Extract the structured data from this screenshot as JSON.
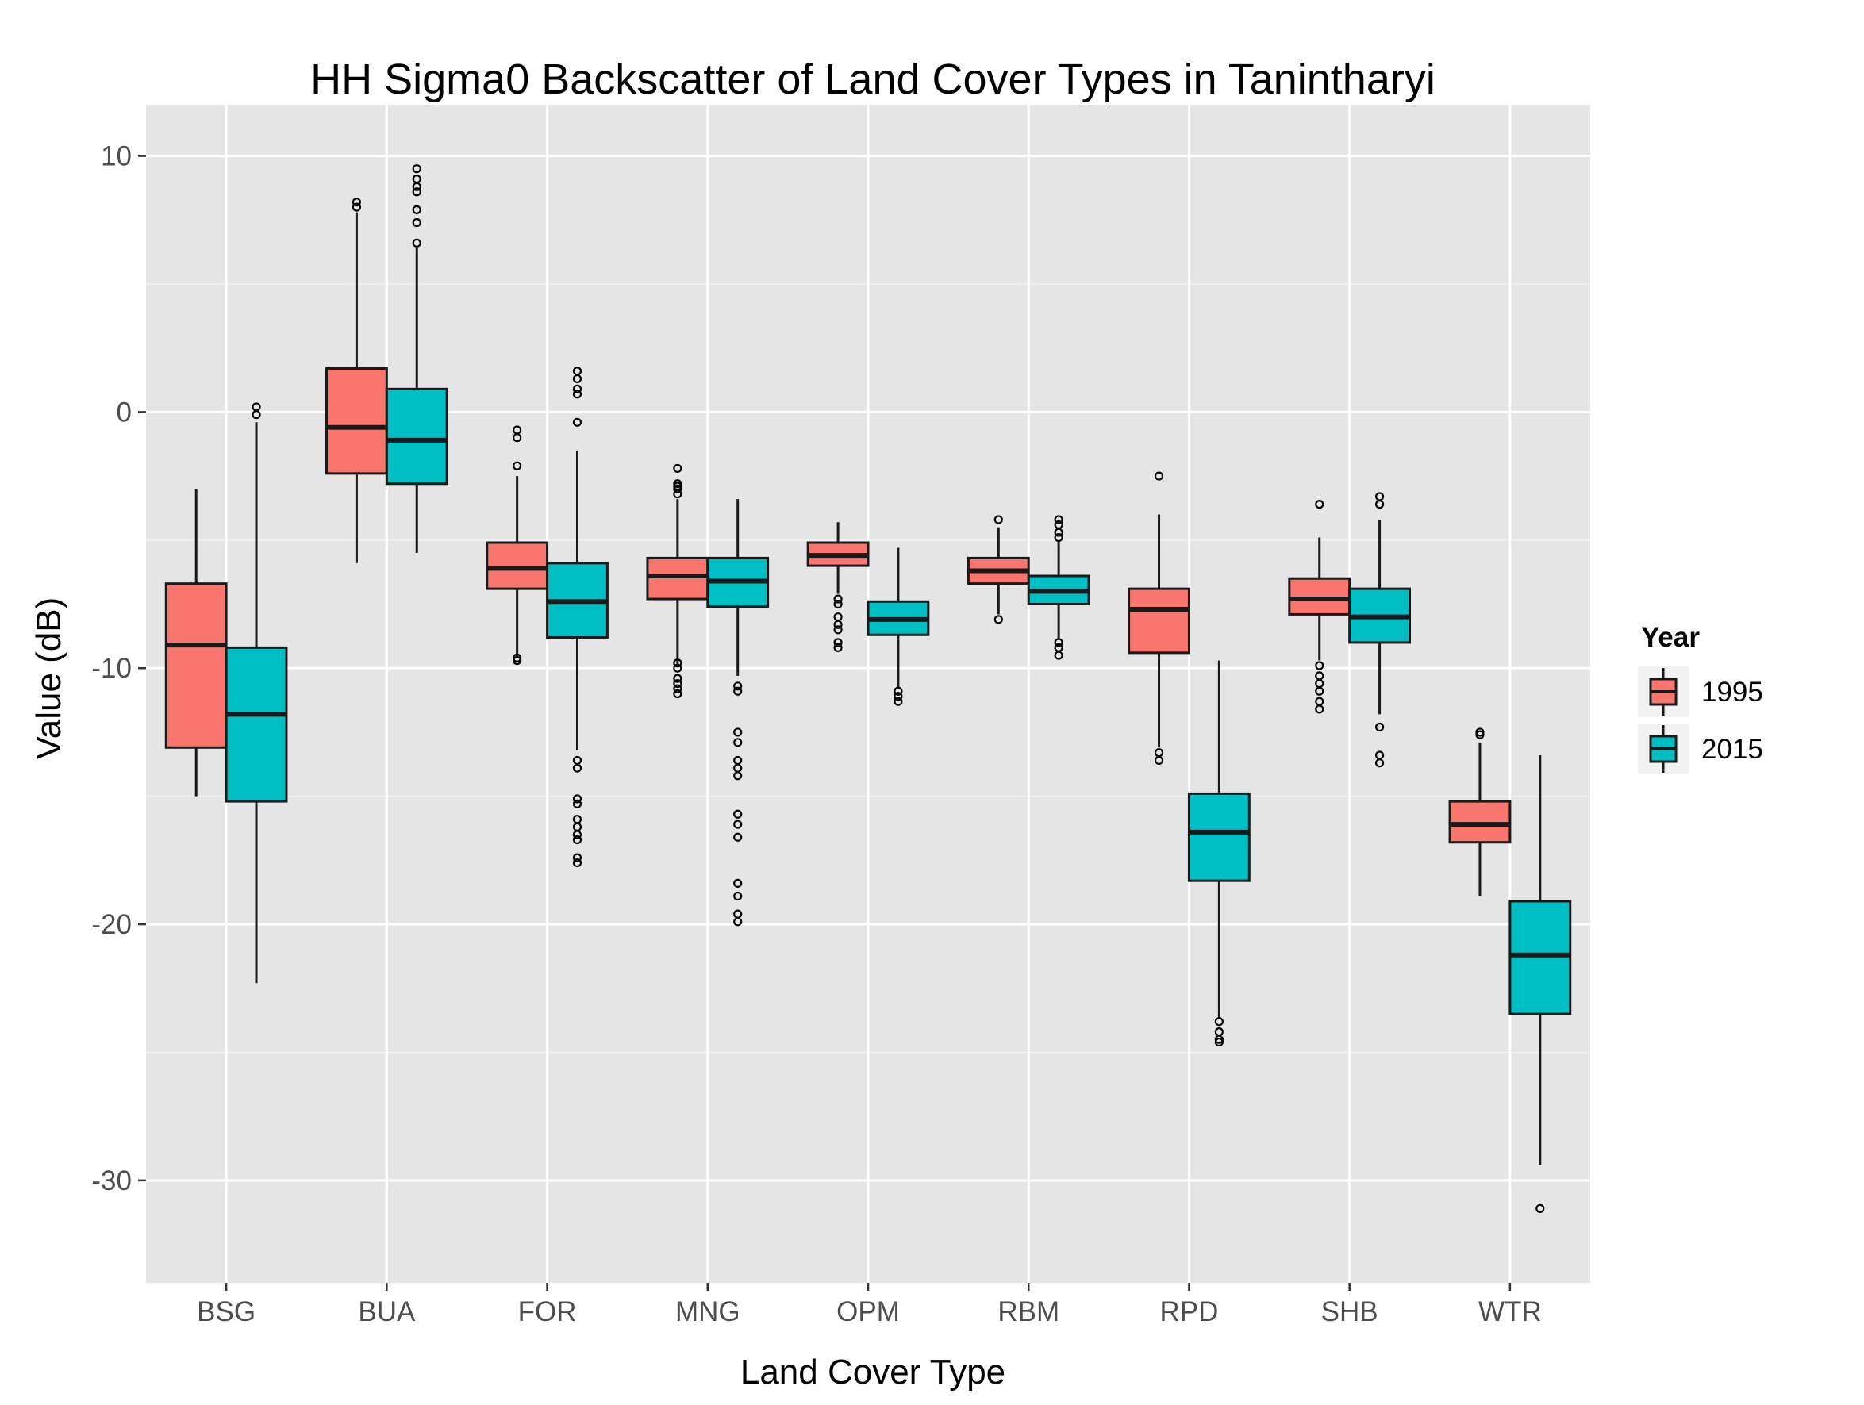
{
  "chart_data": {
    "type": "boxplot",
    "title": "HH Sigma0 Backscatter of Land Cover Types in Tanintharyi",
    "xlabel": "Land Cover Type",
    "ylabel": "Value (dB)",
    "ylim": [
      -34,
      12
    ],
    "yticks": [
      -30,
      -20,
      -10,
      0,
      10
    ],
    "yticks_labels": [
      "-30",
      "-20",
      "-10",
      "0",
      "10"
    ],
    "grid": true,
    "legend": {
      "title": "Year",
      "position": "right"
    },
    "categories": [
      "BSG",
      "BUA",
      "FOR",
      "MNG",
      "OPM",
      "RBM",
      "RPD",
      "SHB",
      "WTR"
    ],
    "series": [
      {
        "name": "1995",
        "color": "#F8766D",
        "boxes": [
          {
            "whisker_low": -15.0,
            "q1": -13.1,
            "median": -9.1,
            "q3": -6.7,
            "whisker_high": -3.0,
            "outliers": []
          },
          {
            "whisker_low": -5.9,
            "q1": -2.4,
            "median": -0.6,
            "q3": 1.7,
            "whisker_high": 7.8,
            "outliers": [
              8.0,
              8.2
            ]
          },
          {
            "whisker_low": -9.6,
            "q1": -6.9,
            "median": -6.1,
            "q3": -5.1,
            "whisker_high": -2.5,
            "outliers": [
              -0.7,
              -1.0,
              -2.1,
              -9.6,
              -9.7
            ]
          },
          {
            "whisker_low": -9.9,
            "q1": -7.3,
            "median": -6.4,
            "q3": -5.7,
            "whisker_high": -3.4,
            "outliers": [
              -2.2,
              -2.8,
              -2.9,
              -3.0,
              -3.2,
              -9.8,
              -10.0,
              -10.4,
              -10.6,
              -10.8,
              -11.0
            ]
          },
          {
            "whisker_low": -7.1,
            "q1": -6.0,
            "median": -5.6,
            "q3": -5.1,
            "whisker_high": -4.3,
            "outliers": [
              -7.3,
              -7.5,
              -8.0,
              -8.3,
              -8.5,
              -9.0,
              -9.2
            ]
          },
          {
            "whisker_low": -7.9,
            "q1": -6.7,
            "median": -6.2,
            "q3": -5.7,
            "whisker_high": -4.5,
            "outliers": [
              -4.2,
              -8.1
            ]
          },
          {
            "whisker_low": -13.1,
            "q1": -9.4,
            "median": -7.7,
            "q3": -6.9,
            "whisker_high": -4.0,
            "outliers": [
              -2.5,
              -13.3,
              -13.6
            ]
          },
          {
            "whisker_low": -9.7,
            "q1": -7.9,
            "median": -7.3,
            "q3": -6.5,
            "whisker_high": -4.9,
            "outliers": [
              -3.6,
              -9.9,
              -10.3,
              -10.6,
              -10.9,
              -11.3,
              -11.6
            ]
          },
          {
            "whisker_low": -18.9,
            "q1": -16.8,
            "median": -16.1,
            "q3": -15.2,
            "whisker_high": -12.9,
            "outliers": [
              -12.5,
              -12.6
            ]
          }
        ]
      },
      {
        "name": "2015",
        "color": "#00BFC4",
        "boxes": [
          {
            "whisker_low": -22.3,
            "q1": -15.2,
            "median": -11.8,
            "q3": -9.2,
            "whisker_high": -0.4,
            "outliers": [
              0.2,
              -0.1
            ]
          },
          {
            "whisker_low": -5.5,
            "q1": -2.8,
            "median": -1.1,
            "q3": 0.9,
            "whisker_high": 6.4,
            "outliers": [
              6.6,
              7.4,
              7.9,
              8.6,
              8.8,
              9.1,
              9.5
            ]
          },
          {
            "whisker_low": -13.2,
            "q1": -8.8,
            "median": -7.4,
            "q3": -5.9,
            "whisker_high": -1.5,
            "outliers": [
              -0.4,
              0.7,
              0.9,
              1.3,
              1.6,
              -13.6,
              -13.9,
              -15.1,
              -15.3,
              -15.9,
              -16.2,
              -16.5,
              -16.7,
              -17.4,
              -17.6
            ]
          },
          {
            "whisker_low": -10.3,
            "q1": -7.6,
            "median": -6.6,
            "q3": -5.7,
            "whisker_high": -3.4,
            "outliers": [
              -10.7,
              -10.9,
              -12.5,
              -12.9,
              -13.6,
              -13.9,
              -14.2,
              -15.7,
              -16.1,
              -16.6,
              -18.4,
              -18.9,
              -19.6,
              -19.9
            ]
          },
          {
            "whisker_low": -10.8,
            "q1": -8.7,
            "median": -8.1,
            "q3": -7.4,
            "whisker_high": -5.3,
            "outliers": [
              -10.9,
              -11.1,
              -11.3
            ]
          },
          {
            "whisker_low": -8.9,
            "q1": -7.5,
            "median": -7.0,
            "q3": -6.4,
            "whisker_high": -5.0,
            "outliers": [
              -4.2,
              -4.4,
              -4.7,
              -4.9,
              -9.0,
              -9.2,
              -9.5
            ]
          },
          {
            "whisker_low": -23.7,
            "q1": -18.3,
            "median": -16.4,
            "q3": -14.9,
            "whisker_high": -9.7,
            "outliers": [
              -23.8,
              -24.2,
              -24.5,
              -24.6
            ]
          },
          {
            "whisker_low": -11.8,
            "q1": -9.0,
            "median": -8.0,
            "q3": -6.9,
            "whisker_high": -4.2,
            "outliers": [
              -3.3,
              -3.6,
              -12.3,
              -13.4,
              -13.7
            ]
          },
          {
            "whisker_low": -29.4,
            "q1": -23.5,
            "median": -21.2,
            "q3": -19.1,
            "whisker_high": -13.4,
            "outliers": [
              -31.1
            ]
          }
        ]
      }
    ]
  },
  "colors": {
    "panel_background": "#E5E5E5",
    "grid_major": "#FFFFFF",
    "grid_minor": "#F2F2F2",
    "box_outline": "#1A1A1A"
  }
}
